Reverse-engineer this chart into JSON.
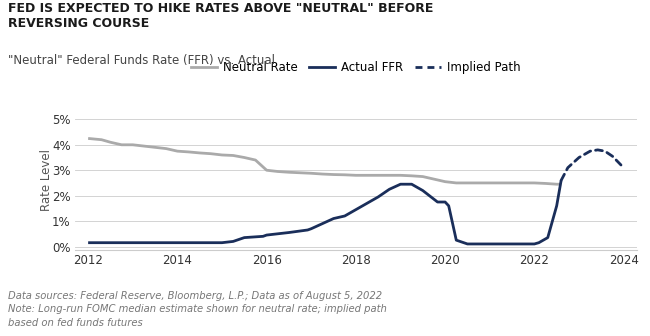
{
  "title": "FED IS EXPECTED TO HIKE RATES ABOVE \"NEUTRAL\" BEFORE\nREVERSING COURSE",
  "subtitle": "\"Neutral\" Federal Funds Rate (FFR) vs. Actual",
  "ylabel": "Rate Level",
  "footnote": "Data sources: Federal Reserve, Bloomberg, L.P.; Data as of August 5, 2022\nNote: Long-run FOMC median estimate shown for neutral rate; implied path\nbased on fed funds futures",
  "neutral_rate": {
    "x": [
      2012.0,
      2012.3,
      2012.5,
      2012.75,
      2013.0,
      2013.25,
      2013.5,
      2013.75,
      2014.0,
      2014.25,
      2014.5,
      2014.75,
      2015.0,
      2015.25,
      2015.5,
      2015.75,
      2016.0,
      2016.1,
      2016.25,
      2016.5,
      2016.75,
      2017.0,
      2017.25,
      2017.5,
      2017.75,
      2018.0,
      2018.25,
      2018.5,
      2018.75,
      2019.0,
      2019.25,
      2019.5,
      2019.75,
      2020.0,
      2020.25,
      2020.5,
      2020.75,
      2021.0,
      2021.25,
      2021.5,
      2021.75,
      2022.0,
      2022.25,
      2022.5,
      2022.6
    ],
    "y": [
      4.25,
      4.2,
      4.1,
      4.0,
      4.0,
      3.95,
      3.9,
      3.85,
      3.75,
      3.72,
      3.68,
      3.65,
      3.6,
      3.58,
      3.5,
      3.4,
      3.0,
      2.98,
      2.95,
      2.92,
      2.9,
      2.88,
      2.85,
      2.83,
      2.82,
      2.8,
      2.8,
      2.8,
      2.8,
      2.8,
      2.78,
      2.75,
      2.65,
      2.55,
      2.5,
      2.5,
      2.5,
      2.5,
      2.5,
      2.5,
      2.5,
      2.5,
      2.48,
      2.45,
      2.45
    ],
    "color": "#aaaaaa",
    "linewidth": 2.0,
    "label": "Neutral Rate"
  },
  "actual_ffr": {
    "x": [
      2012.0,
      2013.0,
      2014.0,
      2015.0,
      2015.25,
      2015.5,
      2015.92,
      2016.0,
      2016.25,
      2016.5,
      2016.92,
      2017.0,
      2017.25,
      2017.5,
      2017.75,
      2018.0,
      2018.25,
      2018.5,
      2018.75,
      2019.0,
      2019.25,
      2019.5,
      2019.83,
      2020.0,
      2020.08,
      2020.25,
      2020.5,
      2021.0,
      2021.5,
      2022.0,
      2022.1,
      2022.3,
      2022.5,
      2022.6
    ],
    "y": [
      0.15,
      0.15,
      0.15,
      0.15,
      0.2,
      0.35,
      0.4,
      0.45,
      0.5,
      0.55,
      0.65,
      0.7,
      0.9,
      1.1,
      1.2,
      1.45,
      1.7,
      1.95,
      2.25,
      2.45,
      2.45,
      2.2,
      1.75,
      1.75,
      1.6,
      0.25,
      0.1,
      0.1,
      0.1,
      0.1,
      0.15,
      0.35,
      1.6,
      2.6
    ],
    "color": "#1a2e5a",
    "linewidth": 2.0,
    "label": "Actual FFR"
  },
  "implied_path": {
    "x": [
      2022.6,
      2022.75,
      2023.0,
      2023.25,
      2023.42,
      2023.58,
      2023.75,
      2024.0
    ],
    "y": [
      2.6,
      3.1,
      3.5,
      3.75,
      3.8,
      3.75,
      3.55,
      3.1
    ],
    "color": "#1a2e5a",
    "linewidth": 2.0,
    "label": "Implied Path"
  },
  "xlim": [
    2011.7,
    2024.3
  ],
  "ylim": [
    -0.15,
    5.4
  ],
  "yticks": [
    0,
    1,
    2,
    3,
    4,
    5
  ],
  "xticks": [
    2012,
    2014,
    2016,
    2018,
    2020,
    2022,
    2024
  ],
  "bg_color": "#ffffff",
  "title_color": "#1a1a1a",
  "subtitle_color": "#444444",
  "footnote_color": "#777777"
}
